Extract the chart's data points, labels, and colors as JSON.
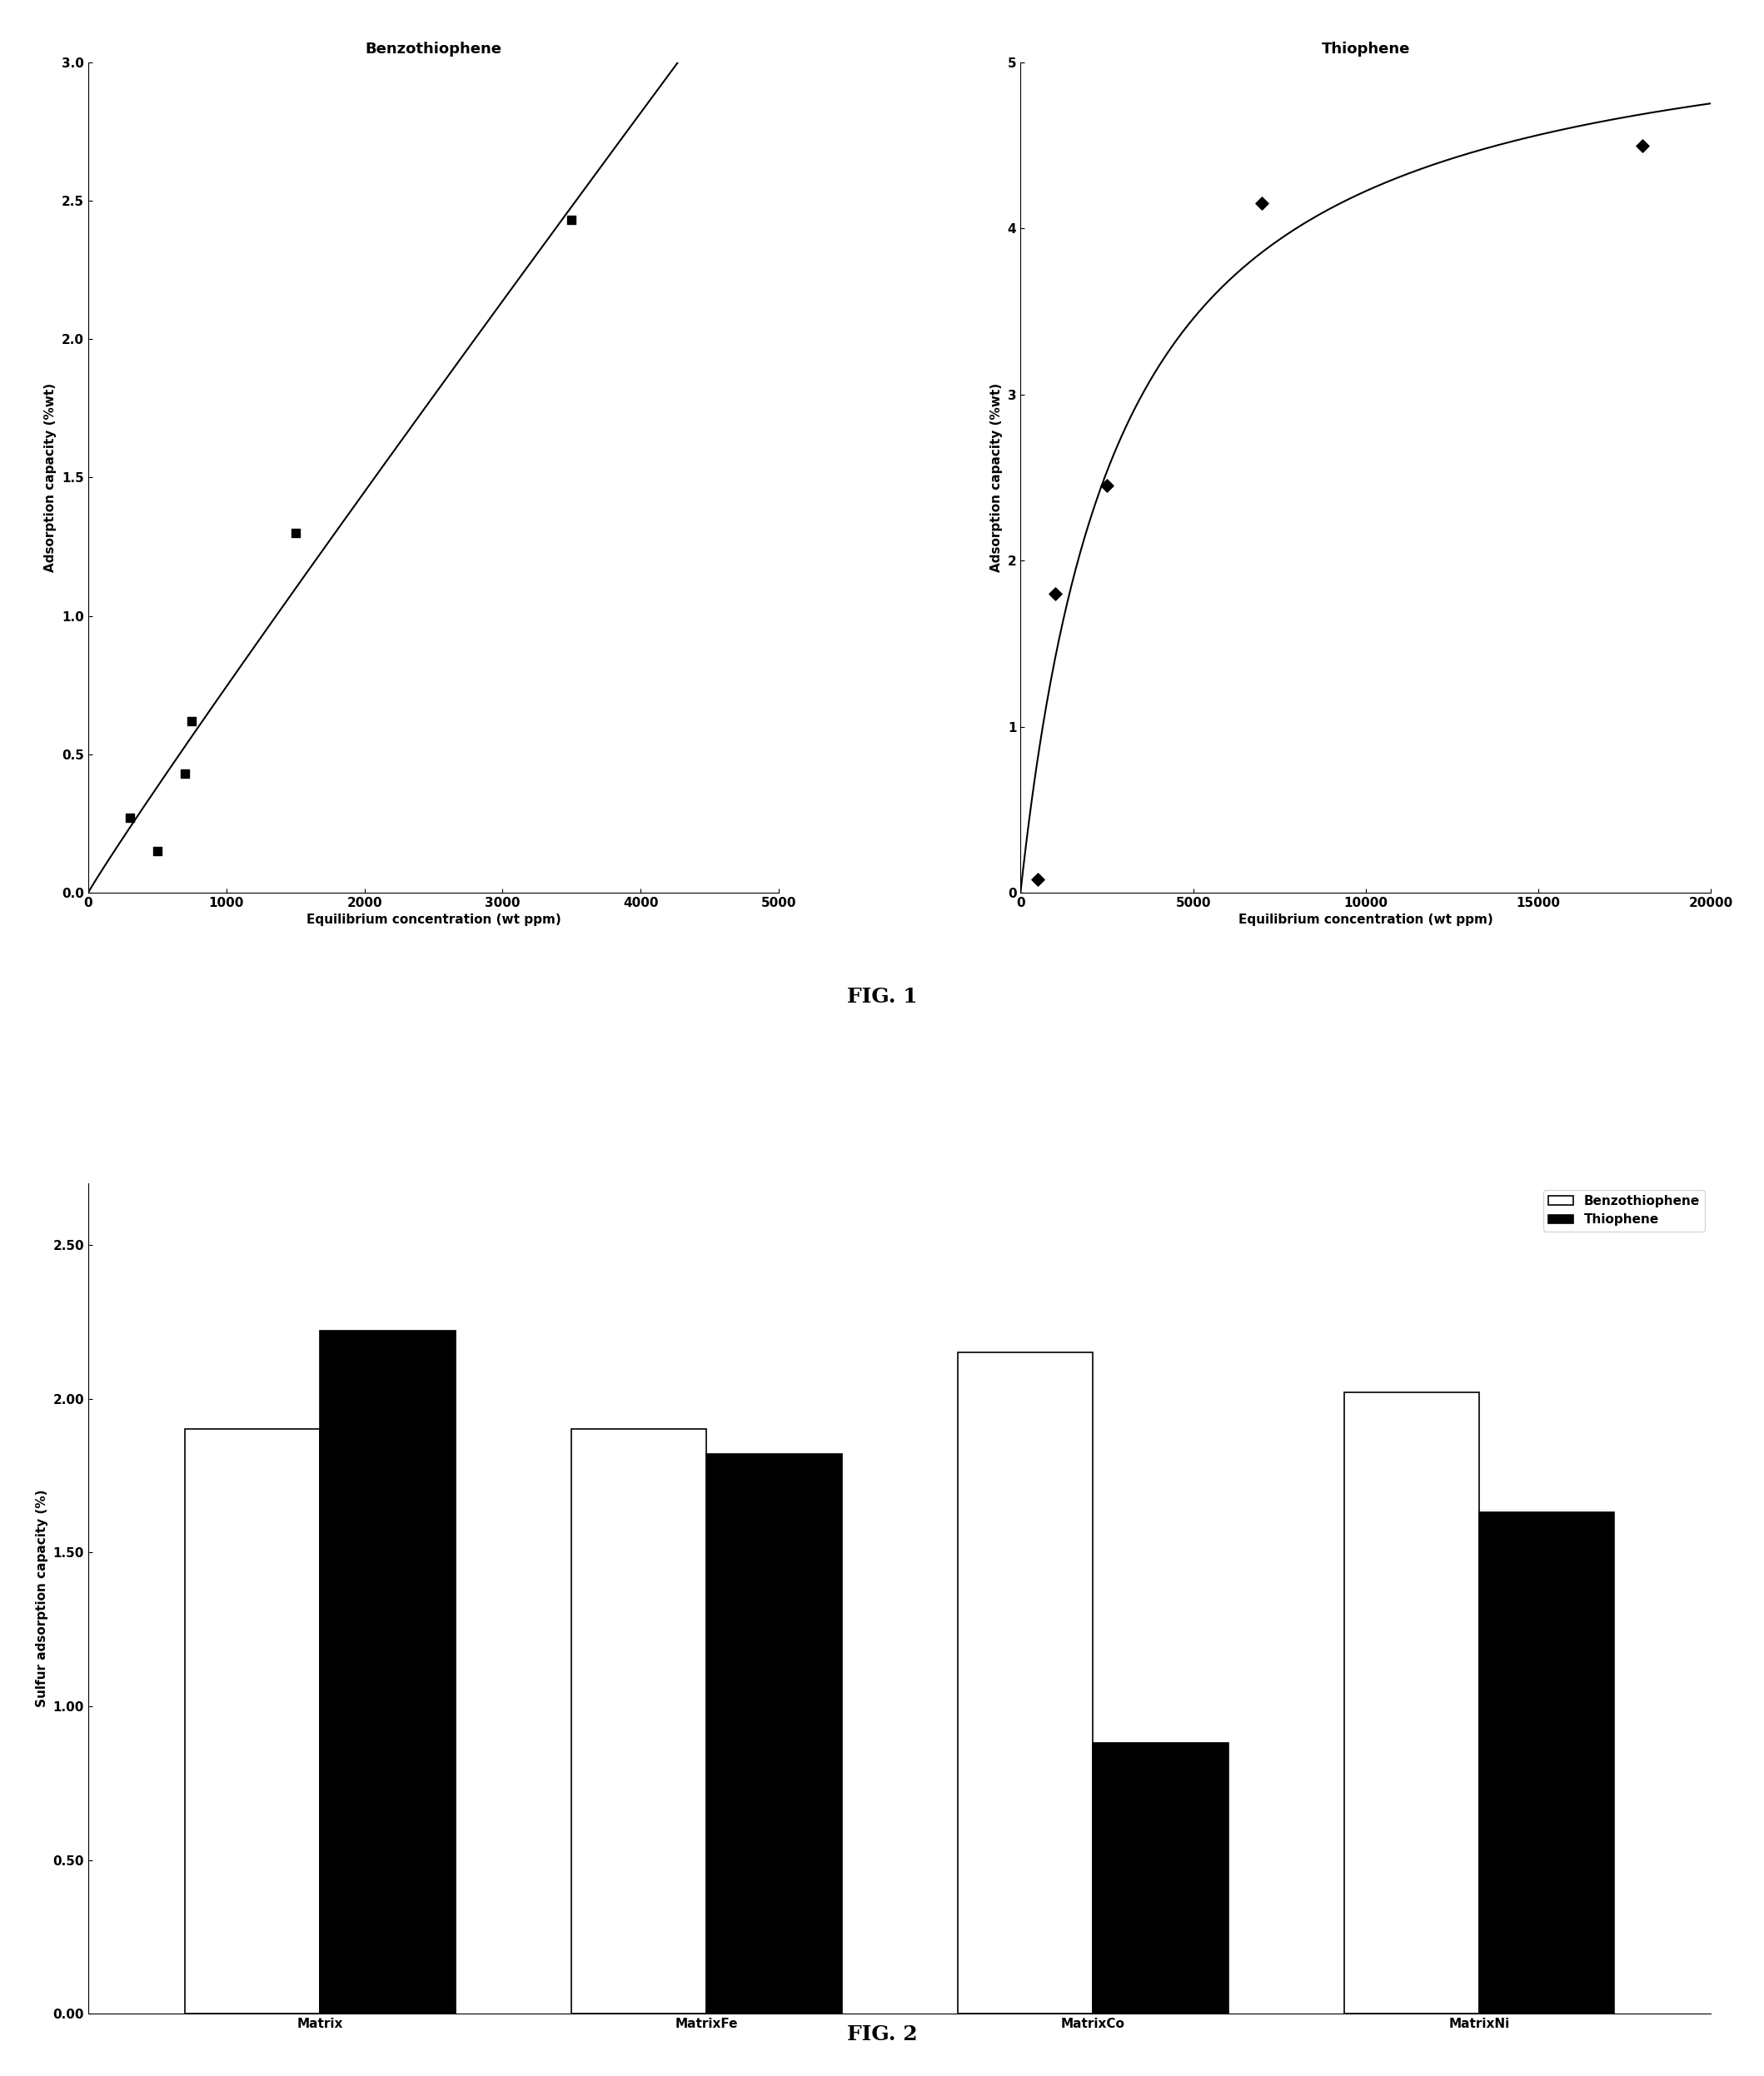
{
  "fig1_title": "FIG. 1",
  "fig2_title": "FIG. 2",
  "benzo_title": "Benzothiophene",
  "benzo_x": [
    300,
    500,
    700,
    750,
    1500,
    3500
  ],
  "benzo_y": [
    0.27,
    0.15,
    0.43,
    0.62,
    1.3,
    2.43
  ],
  "benzo_xlim": [
    0,
    5000
  ],
  "benzo_ylim": [
    0,
    3.0
  ],
  "benzo_xticks": [
    0,
    1000,
    2000,
    3000,
    4000,
    5000
  ],
  "benzo_yticks": [
    0.0,
    0.5,
    1.0,
    1.5,
    2.0,
    2.5,
    3.0
  ],
  "benzo_xlabel": "Equilibrium concentration (wt ppm)",
  "benzo_ylabel": "Adsorption capacity (%wt)",
  "thio_title": "Thiophene",
  "thio_x": [
    500,
    1000,
    2500,
    7000,
    18000
  ],
  "thio_y": [
    0.08,
    1.8,
    2.45,
    4.15,
    4.5
  ],
  "thio_xlim": [
    0,
    20000
  ],
  "thio_ylim": [
    0,
    5
  ],
  "thio_xticks": [
    0,
    5000,
    10000,
    15000,
    20000
  ],
  "thio_yticks": [
    0,
    1,
    2,
    3,
    4,
    5
  ],
  "thio_xlabel": "Equilibrium concentration (wt ppm)",
  "thio_ylabel": "Adsorption capacity (%wt)",
  "bar_categories": [
    "Matrix",
    "MatrixFe",
    "MatrixCo",
    "MatrixNi"
  ],
  "bar_benzo": [
    1.9,
    1.9,
    2.15,
    2.02
  ],
  "bar_thio": [
    2.22,
    1.82,
    0.88,
    1.63
  ],
  "bar_ylabel": "Sulfur adsorption capacity (%)",
  "bar_yticks": [
    0.0,
    0.5,
    1.0,
    1.5,
    2.0,
    2.5
  ],
  "bar_ylim": [
    0,
    2.7
  ],
  "bar_legend_benzo": "Benzothiophene",
  "bar_legend_thio": "Thiophene",
  "background_color": "#ffffff",
  "line_color": "#000000",
  "marker_color": "#000000",
  "bar_benzo_color": "#ffffff",
  "bar_thio_color": "#000000",
  "bar_edge_color": "#000000"
}
